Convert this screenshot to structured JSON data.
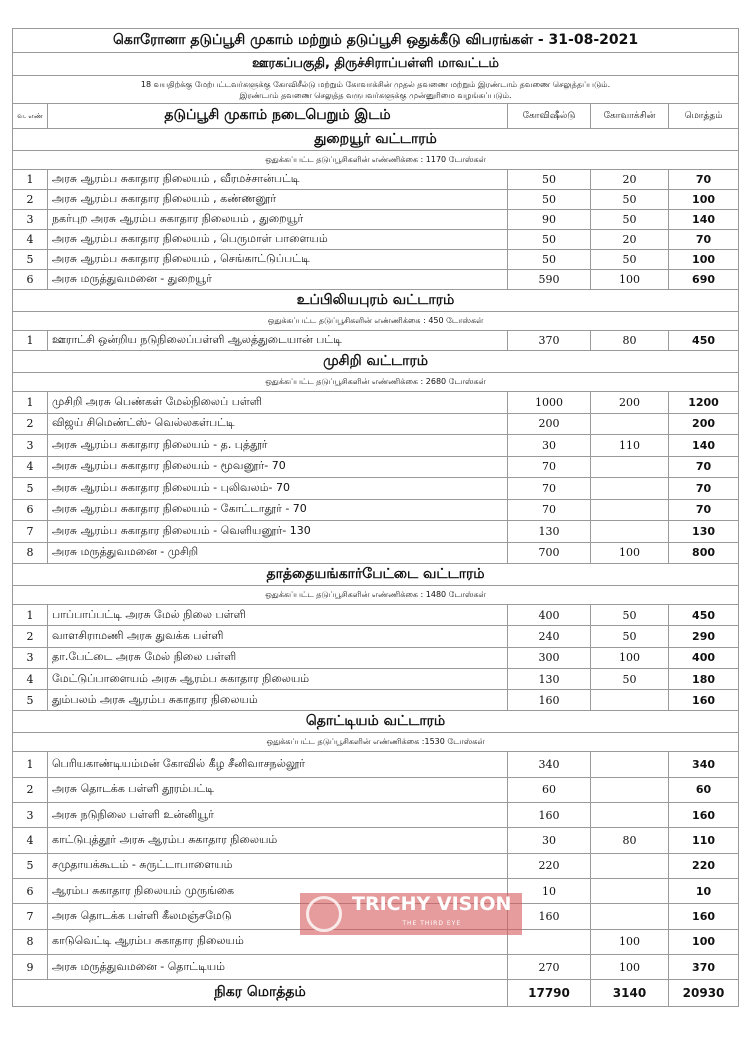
{
  "title": "கொரோனா தடுப்பூசி முகாம் மற்றும் தடுப்பூசி ஒதுக்கீடு விபரங்கள் - 31-08-2021",
  "subtitle": "ஊரகப்பகுதி, திருச்சிராப்பள்ளி மாவட்டம்",
  "note_line1": "18 வயதிற்க்கு மேற்பட்டவர்களுக்கு கோவிசீல்டு மற்றும் கோவாக்சின்  முதல் தவணை மற்றும் இரண்டாம் தவணை செலுத்தப்படும்.",
  "note_line2": "இரண்டாம் தவணை செலுத்த வருபவர்களுக்கு முன்னுரிமை வழங்கப்படும்.",
  "headers": {
    "sno": "வ. எண்",
    "place": "தடுப்பூசி முகாம் நடைபெறும் இடம்",
    "covishield": "கோவிஷீல்டு",
    "covaxin": "கோவாக்சின்",
    "total": "மொத்தம்"
  },
  "blocks": [
    {
      "name": "துறையூர்  வட்டாரம்",
      "allocation": "ஒதுக்கப்பட்ட தடுப்பூசிகளின் எண்ணிக்கை   : 1170 டோஸ்கள்",
      "rows": [
        {
          "sno": "1",
          "place": "அரசு ஆரம்ப சுகாதார நிலையம் , வீரமச்சான்பட்டி",
          "covishield": "50",
          "covaxin": "20",
          "total": "70"
        },
        {
          "sno": "2",
          "place": "அரசு ஆரம்ப சுகாதார நிலையம் , கண்ணனூர்",
          "covishield": "50",
          "covaxin": "50",
          "total": "100"
        },
        {
          "sno": "3",
          "place": "நகர்புற அரசு ஆரம்ப சுகாதார நிலையம் , துறையூர்",
          "covishield": "90",
          "covaxin": "50",
          "total": "140"
        },
        {
          "sno": "4",
          "place": "அரசு ஆரம்ப சுகாதார நிலையம் , பெருமாள் பாளையம்",
          "covishield": "50",
          "covaxin": "20",
          "total": "70"
        },
        {
          "sno": "5",
          "place": "அரசு ஆரம்ப சுகாதார நிலையம் , செங்காட்டுப்பட்டி",
          "covishield": "50",
          "covaxin": "50",
          "total": "100"
        },
        {
          "sno": "6",
          "place": "அரசு மருத்துவமனை - துறையூர்",
          "covishield": "590",
          "covaxin": "100",
          "total": "690"
        }
      ]
    },
    {
      "name": "உப்பிலியபுரம்  வட்டாரம்",
      "allocation": "ஒதுக்கப்பட்ட தடுப்பூசிகளின் எண்ணிக்கை   : 450 டோஸ்கள்",
      "rows": [
        {
          "sno": "1",
          "place": "ஊராட்சி ஒன்றிய நடுநிலைப்பள்ளி ஆலத்துடையான் பட்டி",
          "covishield": "370",
          "covaxin": "80",
          "total": "450"
        }
      ]
    },
    {
      "name": "முசிறி  வட்டாரம்",
      "allocation": "ஒதுக்கப்பட்ட தடுப்பூசிகளின் எண்ணிக்கை   : 2680 டோஸ்கள்",
      "rows": [
        {
          "sno": "1",
          "place": "முசிறி அரசு பெண்கள் மேல்நிலைப் பள்ளி",
          "covishield": "1000",
          "covaxin": "200",
          "total": "1200"
        },
        {
          "sno": "2",
          "place": "விஜய் சிமெண்ட்ஸ்- வெல்லகள்பட்டி",
          "covishield": "200",
          "covaxin": "",
          "total": "200"
        },
        {
          "sno": "3",
          "place": "அரசு ஆரம்ப சுகாதார நிலையம் - த. புத்தூர்",
          "covishield": "30",
          "covaxin": "110",
          "total": "140"
        },
        {
          "sno": "4",
          "place": "அரசு ஆரம்ப சுகாதார நிலையம் - மூவனூர்- 70",
          "covishield": "70",
          "covaxin": "",
          "total": "70"
        },
        {
          "sno": "5",
          "place": "அரசு ஆரம்ப சுகாதார நிலையம் - புலிவலம்- 70",
          "covishield": "70",
          "covaxin": "",
          "total": "70"
        },
        {
          "sno": "6",
          "place": "அரசு ஆரம்ப சுகாதார நிலையம் - கோட்டாதூர் - 70",
          "covishield": "70",
          "covaxin": "",
          "total": "70"
        },
        {
          "sno": "7",
          "place": "அரசு ஆரம்ப சுகாதார நிலையம் - வெளியனூர்- 130",
          "covishield": "130",
          "covaxin": "",
          "total": "130"
        },
        {
          "sno": "8",
          "place": "அரசு மருத்துவமனை - முசிறி",
          "covishield": "700",
          "covaxin": "100",
          "total": "800"
        }
      ]
    },
    {
      "name": "தாத்தையங்கார்பேட்டை வட்டாரம்",
      "allocation": "ஒதுக்கப்பட்ட தடுப்பூசிகளின் எண்ணிக்கை   : 1480 டோஸ்கள்",
      "rows": [
        {
          "sno": "1",
          "place": "பாப்பாப்பட்டி அரசு  மேல் நிலை பள்ளி",
          "covishield": "400",
          "covaxin": "50",
          "total": "450"
        },
        {
          "sno": "2",
          "place": "வாளசிராமணி அரசு துவக்க பள்ளி",
          "covishield": "240",
          "covaxin": "50",
          "total": "290"
        },
        {
          "sno": "3",
          "place": "தா.பேட்டை அரசு மேல் நிலை பள்ளி",
          "covishield": "300",
          "covaxin": "100",
          "total": "400"
        },
        {
          "sno": "4",
          "place": "மேட்டுப்பாளையம் அரசு ஆரம்ப சுகாதார நிலையம்",
          "covishield": "130",
          "covaxin": "50",
          "total": "180"
        },
        {
          "sno": "5",
          "place": "தும்பலம் அரசு ஆரம்ப சுகாதார நிலையம்",
          "covishield": "160",
          "covaxin": "",
          "total": "160"
        }
      ]
    },
    {
      "name": "தொட்டியம்  வட்டாரம்",
      "allocation": "ஒதுக்கப்பட்ட தடுப்பூசிகளின் எண்ணிக்கை   :1530 டோஸ்கள்",
      "rows": [
        {
          "sno": "1",
          "place": "பெரியகாண்டியம்மன் கோவில் கீழ சீனிவாசநல்லூர்",
          "covishield": "340",
          "covaxin": "",
          "total": "340"
        },
        {
          "sno": "2",
          "place": "அரசு தொடக்க பள்ளி தூரம்பட்டி",
          "covishield": "60",
          "covaxin": "",
          "total": "60"
        },
        {
          "sno": "3",
          "place": "அரசு நடுநிலை பள்ளி உன்னியூர்",
          "covishield": "160",
          "covaxin": "",
          "total": "160"
        },
        {
          "sno": "4",
          "place": "காட்டுபுத்தூர் அரசு ஆரம்ப சுகாதார நிலையம்",
          "covishield": "30",
          "covaxin": "80",
          "total": "110"
        },
        {
          "sno": "5",
          "place": "சமுதாயக்கூடம் - சுருட்டாபாளையம்",
          "covishield": "220",
          "covaxin": "",
          "total": "220"
        },
        {
          "sno": "6",
          "place": "ஆரம்ப சுகாதார நிலையம் முருங்கை",
          "covishield": "10",
          "covaxin": "",
          "total": "10"
        },
        {
          "sno": "7",
          "place": "அரசு தொடக்க பள்ளி கீலமஞ்சமேடு",
          "covishield": "160",
          "covaxin": "",
          "total": "160"
        },
        {
          "sno": "8",
          "place": "காடுவெட்டி ஆரம்ப சுகாதார நிலையம்",
          "covishield": "",
          "covaxin": "100",
          "total": "100"
        },
        {
          "sno": "9",
          "place": " அரசு மருத்துவமனை - தொட்டியம்",
          "covishield": "270",
          "covaxin": "100",
          "total": "370"
        }
      ]
    }
  ],
  "grand_total": {
    "label": "நிகர மொத்தம்",
    "covishield": "17790",
    "covaxin": "3140",
    "total": "20930"
  },
  "watermark": {
    "name": "TRICHY VISION",
    "tagline": "THE THIRD EYE",
    "color": "#d65a5a"
  }
}
